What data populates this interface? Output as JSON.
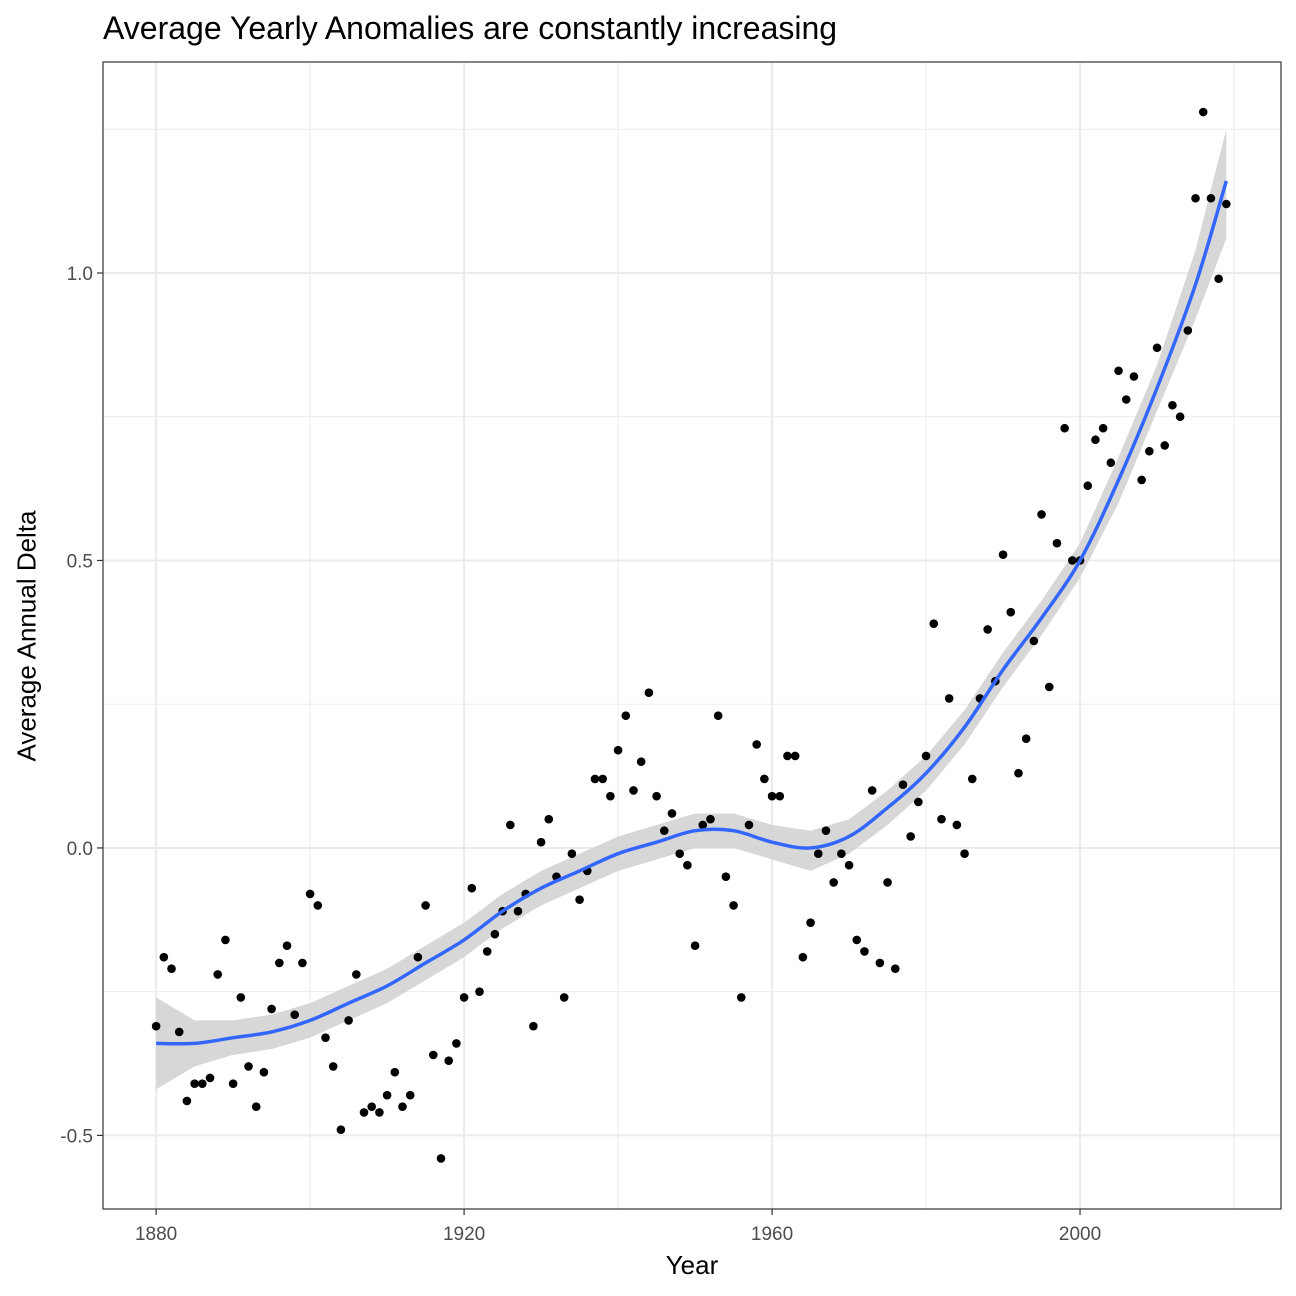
{
  "chart_data": {
    "type": "scatter",
    "title": "Average Yearly Anomalies are constantly increasing",
    "xlabel": "Year",
    "ylabel": "Average Annual Delta",
    "xlim": [
      1873.1,
      2026.1
    ],
    "ylim": [
      -0.628,
      1.367
    ],
    "xticks": [
      1880,
      1920,
      1960,
      2000
    ],
    "yticks": [
      -0.5,
      0.0,
      0.5,
      1.0
    ],
    "xtick_labels": [
      "1880",
      "1920",
      "1960",
      "2000"
    ],
    "ytick_labels": [
      "-0.5",
      "0.0",
      "0.5",
      "1.0"
    ],
    "grid": true,
    "legend": "none",
    "colors": {
      "points": "#000000",
      "smooth": "#3366FF",
      "band": "#d3d3d3",
      "grid": "#ebebeb"
    },
    "x_start": 1880,
    "values": [
      -0.31,
      -0.19,
      -0.21,
      -0.32,
      -0.44,
      -0.41,
      -0.41,
      -0.4,
      -0.22,
      -0.16,
      -0.41,
      -0.26,
      -0.38,
      -0.45,
      -0.39,
      -0.28,
      -0.2,
      -0.17,
      -0.29,
      -0.2,
      -0.08,
      -0.1,
      -0.33,
      -0.38,
      -0.49,
      -0.3,
      -0.22,
      -0.46,
      -0.45,
      -0.46,
      -0.43,
      -0.39,
      -0.45,
      -0.43,
      -0.19,
      -0.1,
      -0.36,
      -0.54,
      -0.37,
      -0.34,
      -0.26,
      -0.07,
      -0.25,
      -0.18,
      -0.15,
      -0.11,
      0.04,
      -0.11,
      -0.08,
      -0.31,
      0.01,
      0.05,
      -0.05,
      -0.26,
      -0.01,
      -0.09,
      -0.04,
      0.12,
      0.12,
      0.09,
      0.17,
      0.23,
      0.1,
      0.15,
      0.27,
      0.09,
      0.03,
      0.06,
      -0.01,
      -0.03,
      -0.17,
      0.04,
      0.05,
      0.23,
      -0.05,
      -0.1,
      -0.26,
      0.04,
      0.18,
      0.12,
      0.09,
      0.09,
      0.16,
      0.16,
      -0.19,
      -0.13,
      -0.01,
      0.03,
      -0.06,
      -0.01,
      -0.03,
      -0.16,
      -0.18,
      0.1,
      -0.2,
      -0.06,
      -0.21,
      0.11,
      0.02,
      0.08,
      0.16,
      0.39,
      0.05,
      0.26,
      0.04,
      -0.01,
      0.12,
      0.26,
      0.38,
      0.29,
      0.51,
      0.41,
      0.13,
      0.19,
      0.36,
      0.58,
      0.28,
      0.53,
      0.73,
      0.5,
      0.5,
      0.63,
      0.71,
      0.73,
      0.67,
      0.83,
      0.78,
      0.82,
      0.64,
      0.69,
      0.87,
      0.7,
      0.77,
      0.75,
      0.9,
      1.13,
      1.28,
      1.13,
      0.99,
      1.12
    ],
    "smooth": {
      "x": [
        1880,
        1885,
        1890,
        1895,
        1900,
        1905,
        1910,
        1915,
        1920,
        1925,
        1930,
        1935,
        1940,
        1945,
        1950,
        1955,
        1960,
        1965,
        1970,
        1975,
        1980,
        1985,
        1990,
        1995,
        2000,
        2005,
        2010,
        2015,
        2019
      ],
      "y": [
        -0.34,
        -0.34,
        -0.33,
        -0.32,
        -0.3,
        -0.27,
        -0.24,
        -0.2,
        -0.16,
        -0.11,
        -0.07,
        -0.04,
        -0.01,
        0.01,
        0.03,
        0.03,
        0.01,
        0.0,
        0.02,
        0.07,
        0.13,
        0.21,
        0.31,
        0.4,
        0.5,
        0.64,
        0.8,
        0.98,
        1.16
      ],
      "lower": [
        -0.42,
        -0.38,
        -0.36,
        -0.35,
        -0.33,
        -0.3,
        -0.27,
        -0.23,
        -0.19,
        -0.14,
        -0.1,
        -0.07,
        -0.04,
        -0.02,
        0.0,
        0.0,
        -0.02,
        -0.04,
        -0.01,
        0.04,
        0.1,
        0.18,
        0.28,
        0.37,
        0.47,
        0.6,
        0.76,
        0.92,
        1.06
      ],
      "upper": [
        -0.26,
        -0.3,
        -0.3,
        -0.29,
        -0.27,
        -0.24,
        -0.21,
        -0.17,
        -0.13,
        -0.08,
        -0.04,
        -0.01,
        0.02,
        0.04,
        0.06,
        0.06,
        0.04,
        0.03,
        0.05,
        0.1,
        0.16,
        0.24,
        0.34,
        0.43,
        0.53,
        0.68,
        0.84,
        1.04,
        1.25
      ]
    }
  }
}
